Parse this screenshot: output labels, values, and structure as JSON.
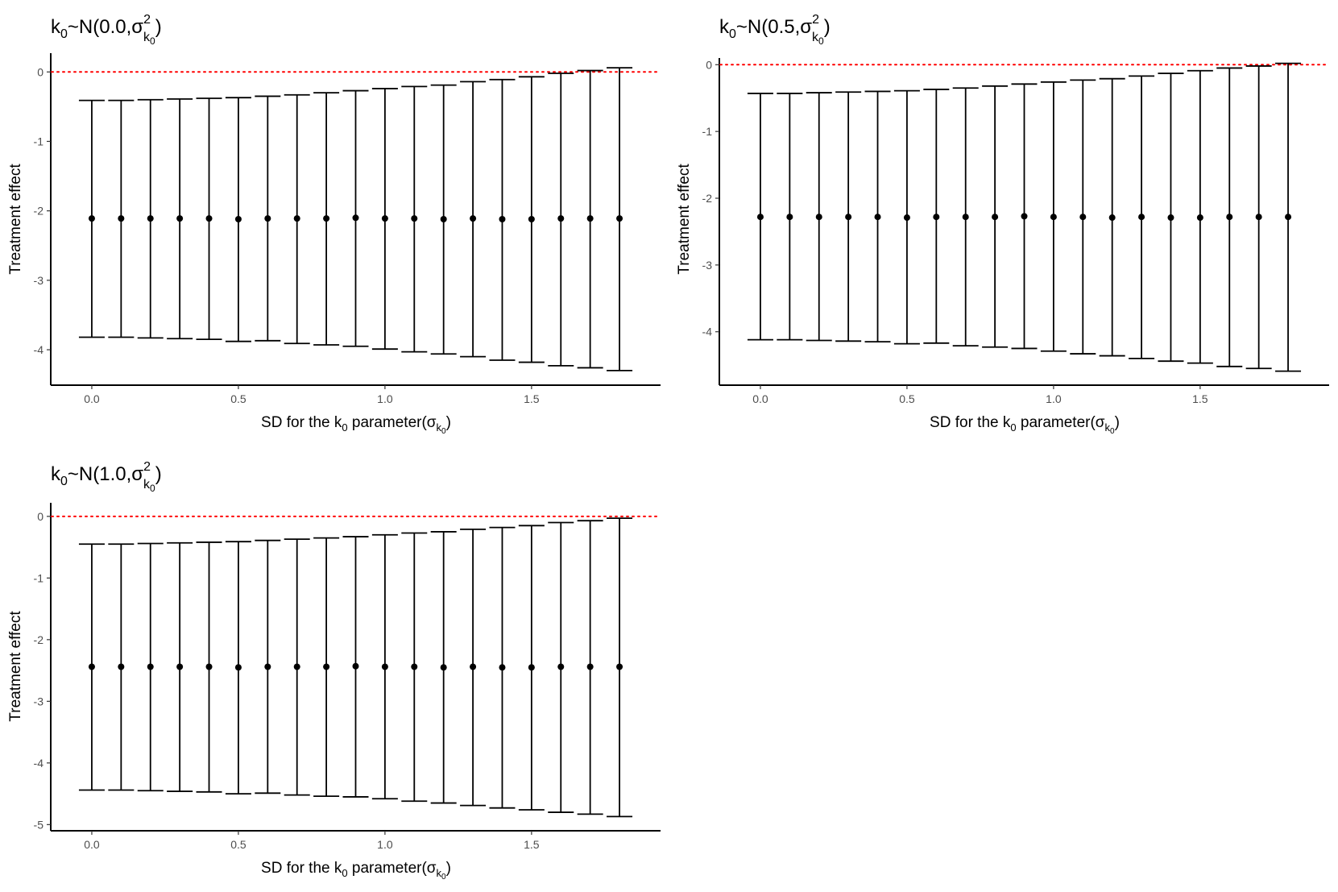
{
  "figure": {
    "y_axis_label": "Treatment effect",
    "x_axis_label": {
      "prefix": "SD for the k",
      "prefix_sub": "0",
      "middle": " parameter(σ",
      "sigma_sub": "k",
      "sigma_subsub": "0",
      "suffix": ")"
    },
    "reference_line": {
      "y": 0,
      "color": "#ff0000",
      "style": "dotted"
    }
  },
  "chart_data": [
    {
      "type": "errorbar",
      "title": {
        "prefix": "k",
        "prefix_sub": "0",
        "dist": "~N(0.0,σ",
        "sup": "2",
        "sub": "k",
        "subsub": "0",
        "suffix": ")"
      },
      "x": [
        0.0,
        0.1,
        0.2,
        0.3,
        0.4,
        0.5,
        0.6,
        0.7,
        0.8,
        0.9,
        1.0,
        1.1,
        1.2,
        1.3,
        1.4,
        1.5,
        1.6,
        1.7,
        1.8
      ],
      "estimate": [
        -2.11,
        -2.11,
        -2.11,
        -2.11,
        -2.11,
        -2.12,
        -2.11,
        -2.11,
        -2.11,
        -2.1,
        -2.11,
        -2.11,
        -2.12,
        -2.11,
        -2.12,
        -2.12,
        -2.11,
        -2.11,
        -2.11
      ],
      "lower": [
        -3.82,
        -3.82,
        -3.83,
        -3.84,
        -3.85,
        -3.88,
        -3.87,
        -3.91,
        -3.93,
        -3.95,
        -3.99,
        -4.03,
        -4.06,
        -4.1,
        -4.15,
        -4.18,
        -4.23,
        -4.26,
        -4.3
      ],
      "upper": [
        -0.41,
        -0.41,
        -0.4,
        -0.39,
        -0.38,
        -0.37,
        -0.35,
        -0.33,
        -0.3,
        -0.27,
        -0.24,
        -0.21,
        -0.19,
        -0.14,
        -0.11,
        -0.07,
        -0.02,
        0.02,
        0.06
      ],
      "xlim": [
        -0.14,
        1.94
      ],
      "ylim": [
        -4.51,
        0.27
      ],
      "yticks": [
        0,
        -1,
        -2,
        -3,
        -4
      ],
      "xticks": [
        0.0,
        0.5,
        1.0,
        1.5
      ],
      "xtick_labels": [
        "0.0",
        "0.5",
        "1.0",
        "1.5"
      ],
      "ytick_labels": [
        "0",
        "-1",
        "-2",
        "-3",
        "-4"
      ]
    },
    {
      "type": "errorbar",
      "title": {
        "prefix": "k",
        "prefix_sub": "0",
        "dist": "~N(0.5,σ",
        "sup": "2",
        "sub": "k",
        "subsub": "0",
        "suffix": ")"
      },
      "x": [
        0.0,
        0.1,
        0.2,
        0.3,
        0.4,
        0.5,
        0.6,
        0.7,
        0.8,
        0.9,
        1.0,
        1.1,
        1.2,
        1.3,
        1.4,
        1.5,
        1.6,
        1.7,
        1.8
      ],
      "estimate": [
        -2.28,
        -2.28,
        -2.28,
        -2.28,
        -2.28,
        -2.29,
        -2.28,
        -2.28,
        -2.28,
        -2.27,
        -2.28,
        -2.28,
        -2.29,
        -2.28,
        -2.29,
        -2.29,
        -2.28,
        -2.28,
        -2.28
      ],
      "lower": [
        -4.12,
        -4.12,
        -4.13,
        -4.14,
        -4.15,
        -4.18,
        -4.17,
        -4.21,
        -4.23,
        -4.25,
        -4.29,
        -4.33,
        -4.36,
        -4.4,
        -4.44,
        -4.47,
        -4.52,
        -4.55,
        -4.59
      ],
      "upper": [
        -0.43,
        -0.43,
        -0.42,
        -0.41,
        -0.4,
        -0.39,
        -0.37,
        -0.35,
        -0.32,
        -0.29,
        -0.26,
        -0.23,
        -0.21,
        -0.17,
        -0.13,
        -0.09,
        -0.05,
        -0.02,
        0.02
      ],
      "xlim": [
        -0.14,
        1.94
      ],
      "ylim": [
        -4.8,
        0.1
      ],
      "yticks": [
        0,
        -1,
        -2,
        -3,
        -4
      ],
      "xticks": [
        0.0,
        0.5,
        1.0,
        1.5
      ],
      "xtick_labels": [
        "0.0",
        "0.5",
        "1.0",
        "1.5"
      ],
      "ytick_labels": [
        "0",
        "-1",
        "-2",
        "-3",
        "-4"
      ]
    },
    {
      "type": "errorbar",
      "title": {
        "prefix": "k",
        "prefix_sub": "0",
        "dist": "~N(1.0,σ",
        "sup": "2",
        "sub": "k",
        "subsub": "0",
        "suffix": ")"
      },
      "x": [
        0.0,
        0.1,
        0.2,
        0.3,
        0.4,
        0.5,
        0.6,
        0.7,
        0.8,
        0.9,
        1.0,
        1.1,
        1.2,
        1.3,
        1.4,
        1.5,
        1.6,
        1.7,
        1.8
      ],
      "estimate": [
        -2.44,
        -2.44,
        -2.44,
        -2.44,
        -2.44,
        -2.45,
        -2.44,
        -2.44,
        -2.44,
        -2.43,
        -2.44,
        -2.44,
        -2.45,
        -2.44,
        -2.45,
        -2.45,
        -2.44,
        -2.44,
        -2.44
      ],
      "lower": [
        -4.44,
        -4.44,
        -4.45,
        -4.46,
        -4.47,
        -4.5,
        -4.49,
        -4.52,
        -4.54,
        -4.55,
        -4.58,
        -4.62,
        -4.65,
        -4.69,
        -4.73,
        -4.76,
        -4.8,
        -4.83,
        -4.87
      ],
      "upper": [
        -0.45,
        -0.45,
        -0.44,
        -0.43,
        -0.42,
        -0.41,
        -0.39,
        -0.37,
        -0.35,
        -0.33,
        -0.3,
        -0.27,
        -0.25,
        -0.21,
        -0.18,
        -0.15,
        -0.1,
        -0.07,
        -0.03
      ],
      "xlim": [
        -0.14,
        1.94
      ],
      "ylim": [
        -5.1,
        0.22
      ],
      "yticks": [
        0,
        -1,
        -2,
        -3,
        -4,
        -5
      ],
      "xticks": [
        0.0,
        0.5,
        1.0,
        1.5
      ],
      "xtick_labels": [
        "0.0",
        "0.5",
        "1.0",
        "1.5"
      ],
      "ytick_labels": [
        "0",
        "-1",
        "-2",
        "-3",
        "-4",
        "-5"
      ]
    }
  ]
}
